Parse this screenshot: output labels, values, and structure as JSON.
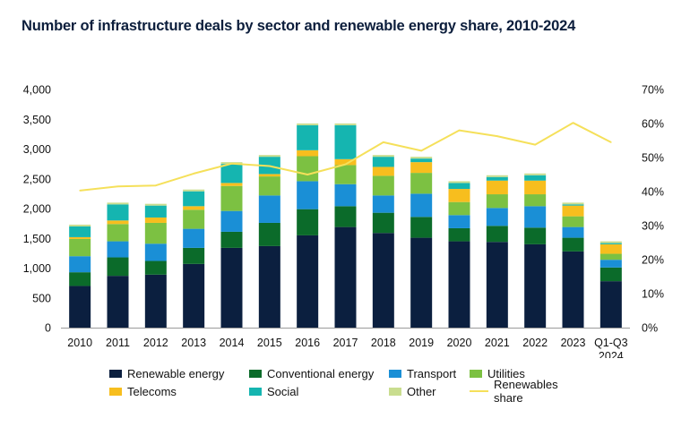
{
  "chart_data": {
    "type": "bar",
    "stacked": true,
    "title": "Number of infrastructure deals by sector and renewable energy share, 2010-2024",
    "categories": [
      "2010",
      "2011",
      "2012",
      "2013",
      "2014",
      "2015",
      "2016",
      "2017",
      "2018",
      "2019",
      "2020",
      "2021",
      "2022",
      "2023",
      "Q1-Q3 2024"
    ],
    "category_lines": [
      [
        "2010"
      ],
      [
        "2011"
      ],
      [
        "2012"
      ],
      [
        "2013"
      ],
      [
        "2014"
      ],
      [
        "2015"
      ],
      [
        "2016"
      ],
      [
        "2017"
      ],
      [
        "2018"
      ],
      [
        "2019"
      ],
      [
        "2020"
      ],
      [
        "2021"
      ],
      [
        "2022"
      ],
      [
        "2023"
      ],
      [
        "Q1-Q3",
        "2024"
      ]
    ],
    "series": [
      {
        "name": "Renewable energy",
        "color": "#0b1f3f",
        "values": [
          700,
          870,
          890,
          1070,
          1340,
          1370,
          1550,
          1690,
          1590,
          1510,
          1450,
          1440,
          1400,
          1280,
          780
        ]
      },
      {
        "name": "Conventional energy",
        "color": "#0b6b2a",
        "values": [
          230,
          310,
          230,
          270,
          270,
          390,
          440,
          350,
          340,
          350,
          220,
          270,
          280,
          230,
          230
        ]
      },
      {
        "name": "Transport",
        "color": "#1a8fd6",
        "values": [
          270,
          270,
          290,
          320,
          350,
          460,
          470,
          370,
          290,
          390,
          220,
          300,
          360,
          180,
          130
        ]
      },
      {
        "name": "Utilities",
        "color": "#7cc142",
        "values": [
          290,
          290,
          350,
          320,
          420,
          320,
          420,
          320,
          330,
          350,
          220,
          230,
          200,
          180,
          100
        ]
      },
      {
        "name": "Telecoms",
        "color": "#f7be1e",
        "values": [
          30,
          60,
          90,
          60,
          50,
          40,
          100,
          100,
          150,
          180,
          220,
          230,
          230,
          180,
          160
        ]
      },
      {
        "name": "Social",
        "color": "#15b5b0",
        "values": [
          180,
          270,
          200,
          250,
          320,
          290,
          420,
          570,
          170,
          60,
          100,
          60,
          90,
          20,
          20
        ]
      },
      {
        "name": "Other",
        "color": "#c9dd8f",
        "values": [
          30,
          30,
          30,
          30,
          30,
          30,
          30,
          30,
          30,
          30,
          30,
          30,
          30,
          30,
          30
        ]
      }
    ],
    "line_series": {
      "name": "Renewables share",
      "color": "#f5e05a",
      "axis": "right",
      "values": [
        40.3,
        41.5,
        41.8,
        45.3,
        48.2,
        47.5,
        45.0,
        48.0,
        54.5,
        52.0,
        58.0,
        56.3,
        53.8,
        60.2,
        54.5
      ]
    },
    "ylim": [
      0,
      4000
    ],
    "yticks": [
      0,
      500,
      1000,
      1500,
      2000,
      2500,
      3000,
      3500,
      4000
    ],
    "ytick_labels": [
      "0",
      "500",
      "1,000",
      "1,500",
      "2,000",
      "2,500",
      "3,000",
      "3,500",
      "4,000"
    ],
    "y2lim": [
      0,
      70
    ],
    "y2ticks": [
      0,
      10,
      20,
      30,
      40,
      50,
      60,
      70
    ],
    "y2tick_labels": [
      "0%",
      "10%",
      "20%",
      "30%",
      "40%",
      "50%",
      "60%",
      "70%"
    ],
    "legend": {
      "row1": [
        "Renewable energy",
        "Conventional energy",
        "Transport",
        "Utilities"
      ],
      "row2": [
        "Telecoms",
        "Social",
        "Other",
        "Renewables share"
      ]
    }
  }
}
